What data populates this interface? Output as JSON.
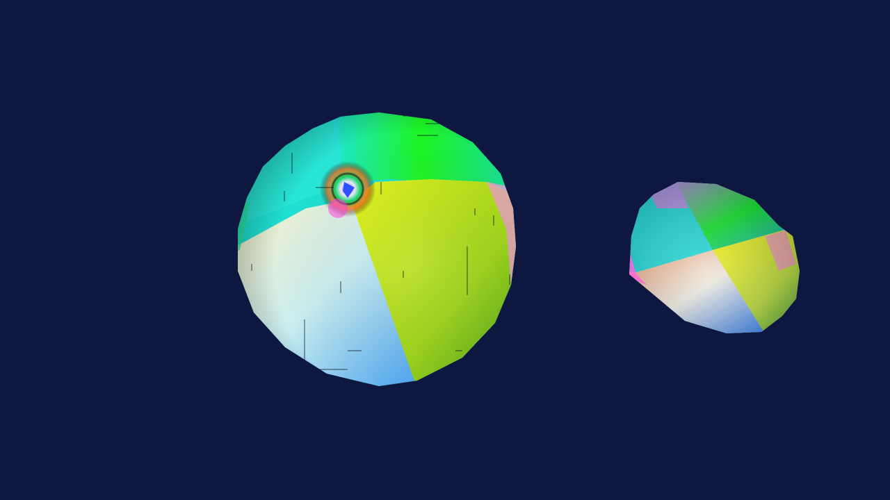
{
  "scene": {
    "background_color": "#0d1740",
    "objects": [
      {
        "kind": "sphere",
        "shading": "normal-map",
        "segment_colors": [
          "#22e7d0",
          "#1ef21e",
          "#e6f221",
          "#f8f4c8",
          "#9fdcf0",
          "#93cc1d",
          "#e28ac8"
        ],
        "has_pole_swirl": true,
        "has_seam_marks": true
      },
      {
        "kind": "sphere",
        "shading": "normal-map",
        "segment_colors": [
          "#18e4d4",
          "#10e52a",
          "#f4f012",
          "#f0eedc",
          "#2f8cf0",
          "#e97cd6"
        ],
        "has_pole_swirl": false,
        "has_seam_marks": false
      }
    ]
  }
}
